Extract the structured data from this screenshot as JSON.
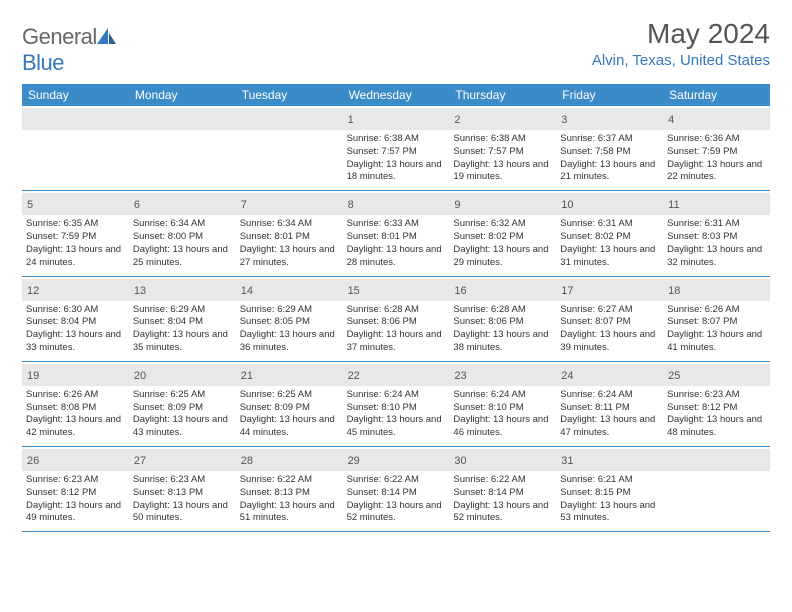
{
  "logo": {
    "text1": "General",
    "text2": "Blue"
  },
  "title": "May 2024",
  "location": "Alvin, Texas, United States",
  "colors": {
    "header_bg": "#3b8bc9",
    "header_text": "#ffffff",
    "day_stripe": "#e8e8e8",
    "accent": "#3478bd",
    "text": "#333333",
    "border": "#3b8bc9"
  },
  "day_headers": [
    "Sunday",
    "Monday",
    "Tuesday",
    "Wednesday",
    "Thursday",
    "Friday",
    "Saturday"
  ],
  "weeks": [
    [
      {
        "day": "",
        "sunrise": "",
        "sunset": "",
        "daylight": "",
        "empty": true
      },
      {
        "day": "",
        "sunrise": "",
        "sunset": "",
        "daylight": "",
        "empty": true
      },
      {
        "day": "",
        "sunrise": "",
        "sunset": "",
        "daylight": "",
        "empty": true
      },
      {
        "day": "1",
        "sunrise": "Sunrise: 6:38 AM",
        "sunset": "Sunset: 7:57 PM",
        "daylight": "Daylight: 13 hours and 18 minutes."
      },
      {
        "day": "2",
        "sunrise": "Sunrise: 6:38 AM",
        "sunset": "Sunset: 7:57 PM",
        "daylight": "Daylight: 13 hours and 19 minutes."
      },
      {
        "day": "3",
        "sunrise": "Sunrise: 6:37 AM",
        "sunset": "Sunset: 7:58 PM",
        "daylight": "Daylight: 13 hours and 21 minutes."
      },
      {
        "day": "4",
        "sunrise": "Sunrise: 6:36 AM",
        "sunset": "Sunset: 7:59 PM",
        "daylight": "Daylight: 13 hours and 22 minutes."
      }
    ],
    [
      {
        "day": "5",
        "sunrise": "Sunrise: 6:35 AM",
        "sunset": "Sunset: 7:59 PM",
        "daylight": "Daylight: 13 hours and 24 minutes."
      },
      {
        "day": "6",
        "sunrise": "Sunrise: 6:34 AM",
        "sunset": "Sunset: 8:00 PM",
        "daylight": "Daylight: 13 hours and 25 minutes."
      },
      {
        "day": "7",
        "sunrise": "Sunrise: 6:34 AM",
        "sunset": "Sunset: 8:01 PM",
        "daylight": "Daylight: 13 hours and 27 minutes."
      },
      {
        "day": "8",
        "sunrise": "Sunrise: 6:33 AM",
        "sunset": "Sunset: 8:01 PM",
        "daylight": "Daylight: 13 hours and 28 minutes."
      },
      {
        "day": "9",
        "sunrise": "Sunrise: 6:32 AM",
        "sunset": "Sunset: 8:02 PM",
        "daylight": "Daylight: 13 hours and 29 minutes."
      },
      {
        "day": "10",
        "sunrise": "Sunrise: 6:31 AM",
        "sunset": "Sunset: 8:02 PM",
        "daylight": "Daylight: 13 hours and 31 minutes."
      },
      {
        "day": "11",
        "sunrise": "Sunrise: 6:31 AM",
        "sunset": "Sunset: 8:03 PM",
        "daylight": "Daylight: 13 hours and 32 minutes."
      }
    ],
    [
      {
        "day": "12",
        "sunrise": "Sunrise: 6:30 AM",
        "sunset": "Sunset: 8:04 PM",
        "daylight": "Daylight: 13 hours and 33 minutes."
      },
      {
        "day": "13",
        "sunrise": "Sunrise: 6:29 AM",
        "sunset": "Sunset: 8:04 PM",
        "daylight": "Daylight: 13 hours and 35 minutes."
      },
      {
        "day": "14",
        "sunrise": "Sunrise: 6:29 AM",
        "sunset": "Sunset: 8:05 PM",
        "daylight": "Daylight: 13 hours and 36 minutes."
      },
      {
        "day": "15",
        "sunrise": "Sunrise: 6:28 AM",
        "sunset": "Sunset: 8:06 PM",
        "daylight": "Daylight: 13 hours and 37 minutes."
      },
      {
        "day": "16",
        "sunrise": "Sunrise: 6:28 AM",
        "sunset": "Sunset: 8:06 PM",
        "daylight": "Daylight: 13 hours and 38 minutes."
      },
      {
        "day": "17",
        "sunrise": "Sunrise: 6:27 AM",
        "sunset": "Sunset: 8:07 PM",
        "daylight": "Daylight: 13 hours and 39 minutes."
      },
      {
        "day": "18",
        "sunrise": "Sunrise: 6:26 AM",
        "sunset": "Sunset: 8:07 PM",
        "daylight": "Daylight: 13 hours and 41 minutes."
      }
    ],
    [
      {
        "day": "19",
        "sunrise": "Sunrise: 6:26 AM",
        "sunset": "Sunset: 8:08 PM",
        "daylight": "Daylight: 13 hours and 42 minutes."
      },
      {
        "day": "20",
        "sunrise": "Sunrise: 6:25 AM",
        "sunset": "Sunset: 8:09 PM",
        "daylight": "Daylight: 13 hours and 43 minutes."
      },
      {
        "day": "21",
        "sunrise": "Sunrise: 6:25 AM",
        "sunset": "Sunset: 8:09 PM",
        "daylight": "Daylight: 13 hours and 44 minutes."
      },
      {
        "day": "22",
        "sunrise": "Sunrise: 6:24 AM",
        "sunset": "Sunset: 8:10 PM",
        "daylight": "Daylight: 13 hours and 45 minutes."
      },
      {
        "day": "23",
        "sunrise": "Sunrise: 6:24 AM",
        "sunset": "Sunset: 8:10 PM",
        "daylight": "Daylight: 13 hours and 46 minutes."
      },
      {
        "day": "24",
        "sunrise": "Sunrise: 6:24 AM",
        "sunset": "Sunset: 8:11 PM",
        "daylight": "Daylight: 13 hours and 47 minutes."
      },
      {
        "day": "25",
        "sunrise": "Sunrise: 6:23 AM",
        "sunset": "Sunset: 8:12 PM",
        "daylight": "Daylight: 13 hours and 48 minutes."
      }
    ],
    [
      {
        "day": "26",
        "sunrise": "Sunrise: 6:23 AM",
        "sunset": "Sunset: 8:12 PM",
        "daylight": "Daylight: 13 hours and 49 minutes."
      },
      {
        "day": "27",
        "sunrise": "Sunrise: 6:23 AM",
        "sunset": "Sunset: 8:13 PM",
        "daylight": "Daylight: 13 hours and 50 minutes."
      },
      {
        "day": "28",
        "sunrise": "Sunrise: 6:22 AM",
        "sunset": "Sunset: 8:13 PM",
        "daylight": "Daylight: 13 hours and 51 minutes."
      },
      {
        "day": "29",
        "sunrise": "Sunrise: 6:22 AM",
        "sunset": "Sunset: 8:14 PM",
        "daylight": "Daylight: 13 hours and 52 minutes."
      },
      {
        "day": "30",
        "sunrise": "Sunrise: 6:22 AM",
        "sunset": "Sunset: 8:14 PM",
        "daylight": "Daylight: 13 hours and 52 minutes."
      },
      {
        "day": "31",
        "sunrise": "Sunrise: 6:21 AM",
        "sunset": "Sunset: 8:15 PM",
        "daylight": "Daylight: 13 hours and 53 minutes."
      },
      {
        "day": "",
        "sunrise": "",
        "sunset": "",
        "daylight": "",
        "empty": true
      }
    ]
  ]
}
